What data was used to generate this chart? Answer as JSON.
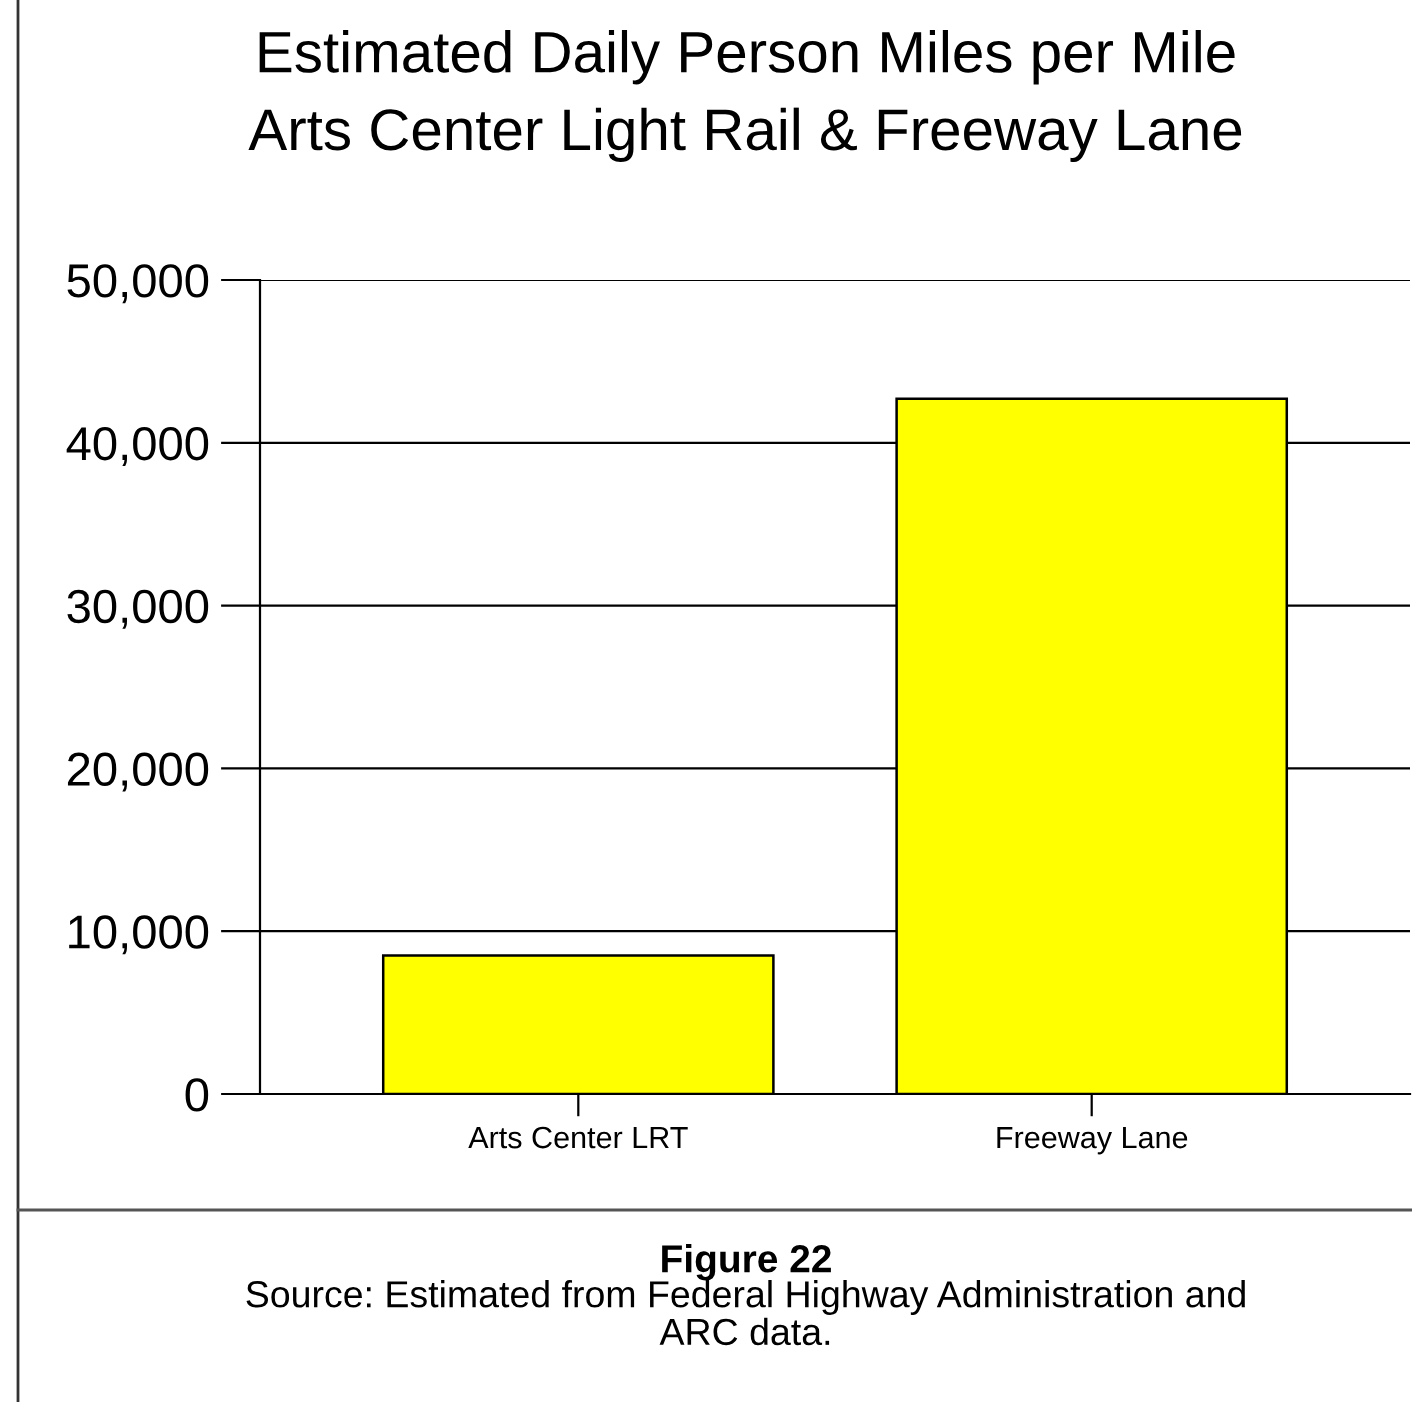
{
  "chart_data": {
    "type": "bar",
    "title": "Estimated Daily Person Miles per Mile\nArts Center Light Rail & Freeway Lane",
    "categories": [
      "Arts Center LRT",
      "Freeway Lane"
    ],
    "values": [
      8500,
      42700
    ],
    "color": "#ffff00",
    "ylim": [
      0,
      50000
    ],
    "yticks": [
      {
        "value": 0,
        "label": "0"
      },
      {
        "value": 10000,
        "label": "10,000"
      },
      {
        "value": 20000,
        "label": "20,000"
      },
      {
        "value": 30000,
        "label": "30,000"
      },
      {
        "value": 40000,
        "label": "40,000"
      },
      {
        "value": 50000,
        "label": "50,000"
      }
    ],
    "grid": "y",
    "annotations": [
      "Figure 22",
      "Source: Estimated from Federal Highway Administration and\nARC data."
    ]
  }
}
